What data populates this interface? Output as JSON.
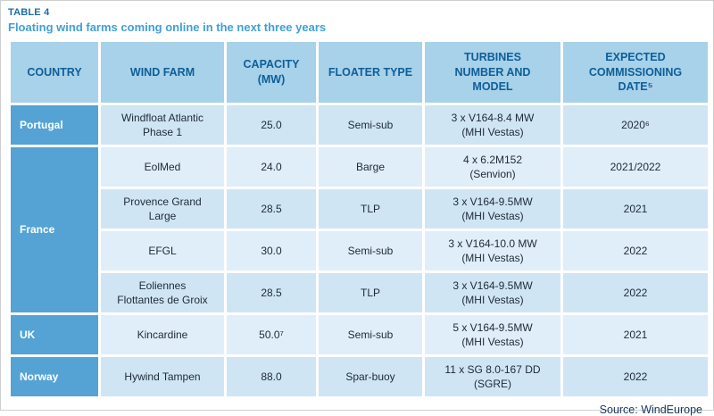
{
  "page": {
    "table_label": "TABLE 4",
    "subtitle": "Floating wind farms coming online in the next three years",
    "source": "Source: WindEurope"
  },
  "table": {
    "headers": [
      "COUNTRY",
      "WIND FARM",
      "CAPACITY\n(MW)",
      "FLOATER TYPE",
      "TURBINES\nNUMBER AND\nMODEL",
      "EXPECTED\nCOMMISSIONING\nDATE⁵"
    ],
    "groups": [
      {
        "country": "Portugal",
        "rows": [
          {
            "farm": "Windfloat Atlantic\nPhase 1",
            "capacity": "25.0",
            "floater": "Semi-sub",
            "turbines": "3 x V164-8.4 MW\n(MHI Vestas)",
            "date": "2020⁶"
          }
        ]
      },
      {
        "country": "France",
        "rows": [
          {
            "farm": "EolMed",
            "capacity": "24.0",
            "floater": "Barge",
            "turbines": "4 x 6.2M152\n(Senvion)",
            "date": "2021/2022"
          },
          {
            "farm": "Provence Grand\nLarge",
            "capacity": "28.5",
            "floater": "TLP",
            "turbines": "3 x V164-9.5MW\n(MHI Vestas)",
            "date": "2021"
          },
          {
            "farm": "EFGL",
            "capacity": "30.0",
            "floater": "Semi-sub",
            "turbines": "3 x V164-10.0 MW\n(MHI Vestas)",
            "date": "2022"
          },
          {
            "farm": "Eoliennes\nFlottantes de Groix",
            "capacity": "28.5",
            "floater": "TLP",
            "turbines": "3 x V164-9.5MW\n(MHI Vestas)",
            "date": "2022"
          }
        ]
      },
      {
        "country": "UK",
        "rows": [
          {
            "farm": "Kincardine",
            "capacity": "50.0⁷",
            "floater": "Semi-sub",
            "turbines": "5 x V164-9.5MW\n(MHI Vestas)",
            "date": "2021"
          }
        ]
      },
      {
        "country": "Norway",
        "rows": [
          {
            "farm": "Hywind Tampen",
            "capacity": "88.0",
            "floater": "Spar-buoy",
            "turbines": "11 x SG 8.0-167 DD\n(SGRE)",
            "date": "2022"
          }
        ]
      }
    ]
  }
}
